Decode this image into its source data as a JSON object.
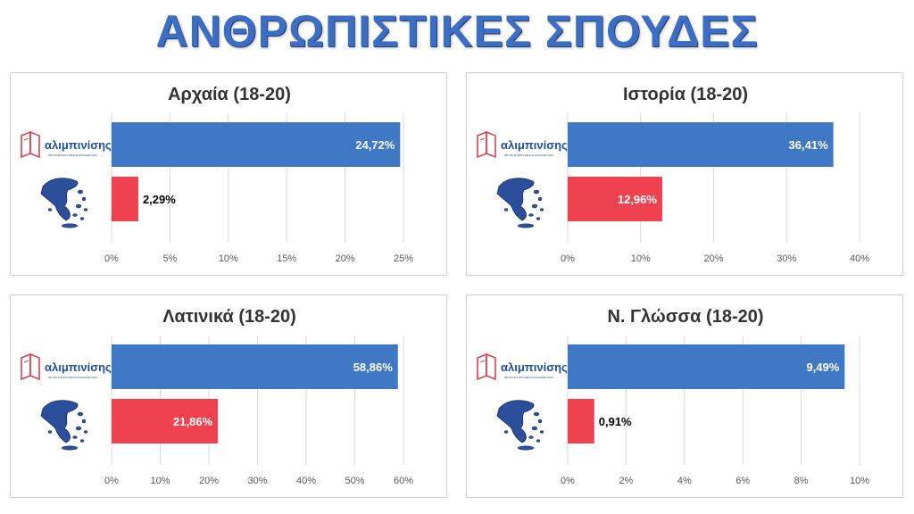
{
  "page_title": "ΑΝΘΡΩΠΙΣΤΙΚΕΣ ΣΠΟΥΔΕΣ",
  "logo": {
    "text": "αλιμπινίσης",
    "tagline": "ΦΡΟΝΤΙΣΤΗΡΙΑ ΜΕΣΗΣ ΕΚΠΑΙΔΕΥΣΗΣ"
  },
  "colors": {
    "title": "#3c6fc4",
    "series_school": "#3f78c4",
    "series_greece": "#f0414f",
    "map": "#2b4f9a",
    "logo_red": "#e0404a"
  },
  "chart_data": [
    {
      "type": "bar",
      "orientation": "horizontal",
      "title": "Αρχαία (18-20)",
      "categories": [
        "logo-icon",
        "greece-map-icon"
      ],
      "values": [
        24.72,
        2.29
      ],
      "value_labels": [
        "24,72%",
        "2,29%"
      ],
      "xlim": [
        0,
        25
      ],
      "ticks": [
        0,
        5,
        10,
        15,
        20,
        25
      ],
      "tick_labels": [
        "0%",
        "5%",
        "10%",
        "15%",
        "20%",
        "25%"
      ],
      "grid": true,
      "legend": "none"
    },
    {
      "type": "bar",
      "orientation": "horizontal",
      "title": "Ιστορία (18-20)",
      "categories": [
        "logo-icon",
        "greece-map-icon"
      ],
      "values": [
        36.41,
        12.96
      ],
      "value_labels": [
        "36,41%",
        "12,96%"
      ],
      "xlim": [
        0,
        40
      ],
      "ticks": [
        0,
        10,
        20,
        30,
        40
      ],
      "tick_labels": [
        "0%",
        "10%",
        "20%",
        "30%",
        "40%"
      ],
      "grid": true,
      "legend": "none"
    },
    {
      "type": "bar",
      "orientation": "horizontal",
      "title": "Λατινικά (18-20)",
      "categories": [
        "logo-icon",
        "greece-map-icon"
      ],
      "values": [
        58.86,
        21.86
      ],
      "value_labels": [
        "58,86%",
        "21,86%"
      ],
      "xlim": [
        0,
        60
      ],
      "ticks": [
        0,
        10,
        20,
        30,
        40,
        50,
        60
      ],
      "tick_labels": [
        "0%",
        "10%",
        "20%",
        "30%",
        "40%",
        "50%",
        "60%"
      ],
      "grid": true,
      "legend": "none"
    },
    {
      "type": "bar",
      "orientation": "horizontal",
      "title": "Ν. Γλώσσα (18-20)",
      "categories": [
        "logo-icon",
        "greece-map-icon"
      ],
      "values": [
        9.49,
        0.91
      ],
      "value_labels": [
        "9,49%",
        "0,91%"
      ],
      "xlim": [
        0,
        10
      ],
      "ticks": [
        0,
        2,
        4,
        6,
        8,
        10
      ],
      "tick_labels": [
        "0%",
        "2%",
        "4%",
        "6%",
        "8%",
        "10%"
      ],
      "grid": true,
      "legend": "none"
    }
  ]
}
